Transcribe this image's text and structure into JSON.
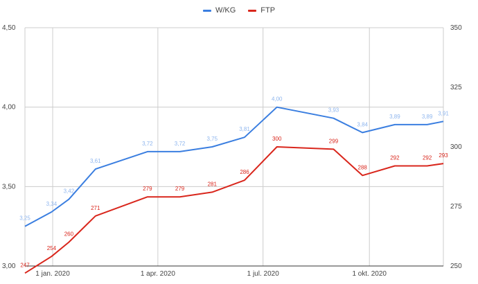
{
  "colors": {
    "wkg": "#3a7ee0",
    "ftp": "#d9261c",
    "wkg_label": "#8fb6ee",
    "ftp_label": "#d9261c",
    "grid": "#cccccc",
    "axis_text": "#444444"
  },
  "chart_data": {
    "type": "line",
    "grid": true,
    "legend_position": "top-center",
    "x_ticks": [
      "1 jan. 2020",
      "1 apr. 2020",
      "1 jul. 2020",
      "1 okt. 2020"
    ],
    "x_tick_dates": [
      "2020-01-01",
      "2020-04-01",
      "2020-07-01",
      "2020-10-01"
    ],
    "x_range": [
      "2019-12-08",
      "2020-12-04"
    ],
    "y_left": {
      "range": [
        3.0,
        4.5
      ],
      "ticks": [
        "3,00",
        "3,50",
        "4,00",
        "4,50"
      ]
    },
    "y_right": {
      "range": [
        250,
        350
      ],
      "ticks": [
        "250",
        "275",
        "300",
        "325",
        "350"
      ]
    },
    "series": [
      {
        "name": "W/KG",
        "axis": "left",
        "points": [
          {
            "x": "2019-12-08",
            "y": 3.25,
            "label": "3,25"
          },
          {
            "x": "2019-12-31",
            "y": 3.34,
            "label": "3,34"
          },
          {
            "x": "2020-01-15",
            "y": 3.42,
            "label": "3,42"
          },
          {
            "x": "2020-02-07",
            "y": 3.61,
            "label": "3,61"
          },
          {
            "x": "2020-03-23",
            "y": 3.72,
            "label": "3,72"
          },
          {
            "x": "2020-04-20",
            "y": 3.72,
            "label": "3,72"
          },
          {
            "x": "2020-05-18",
            "y": 3.75,
            "label": "3,75"
          },
          {
            "x": "2020-06-15",
            "y": 3.81,
            "label": "3,81"
          },
          {
            "x": "2020-07-13",
            "y": 4.0,
            "label": "4,00"
          },
          {
            "x": "2020-08-31",
            "y": 3.93,
            "label": "3,93"
          },
          {
            "x": "2020-09-25",
            "y": 3.84,
            "label": "3,84"
          },
          {
            "x": "2020-10-23",
            "y": 3.89,
            "label": "3,89"
          },
          {
            "x": "2020-11-20",
            "y": 3.89,
            "label": "3,89"
          },
          {
            "x": "2020-12-04",
            "y": 3.91,
            "label": "3,91"
          }
        ]
      },
      {
        "name": "FTP",
        "axis": "right",
        "points": [
          {
            "x": "2019-12-08",
            "y": 247,
            "label": "247"
          },
          {
            "x": "2019-12-31",
            "y": 254,
            "label": "254"
          },
          {
            "x": "2020-01-15",
            "y": 260,
            "label": "260"
          },
          {
            "x": "2020-02-07",
            "y": 271,
            "label": "271"
          },
          {
            "x": "2020-03-23",
            "y": 279,
            "label": "279"
          },
          {
            "x": "2020-04-20",
            "y": 279,
            "label": "279"
          },
          {
            "x": "2020-05-18",
            "y": 281,
            "label": "281"
          },
          {
            "x": "2020-06-15",
            "y": 286,
            "label": "286"
          },
          {
            "x": "2020-07-13",
            "y": 300,
            "label": "300"
          },
          {
            "x": "2020-08-31",
            "y": 299,
            "label": "299"
          },
          {
            "x": "2020-09-25",
            "y": 288,
            "label": "288"
          },
          {
            "x": "2020-10-23",
            "y": 292,
            "label": "292"
          },
          {
            "x": "2020-11-20",
            "y": 292,
            "label": "292"
          },
          {
            "x": "2020-12-04",
            "y": 293,
            "label": "293"
          }
        ]
      }
    ]
  }
}
